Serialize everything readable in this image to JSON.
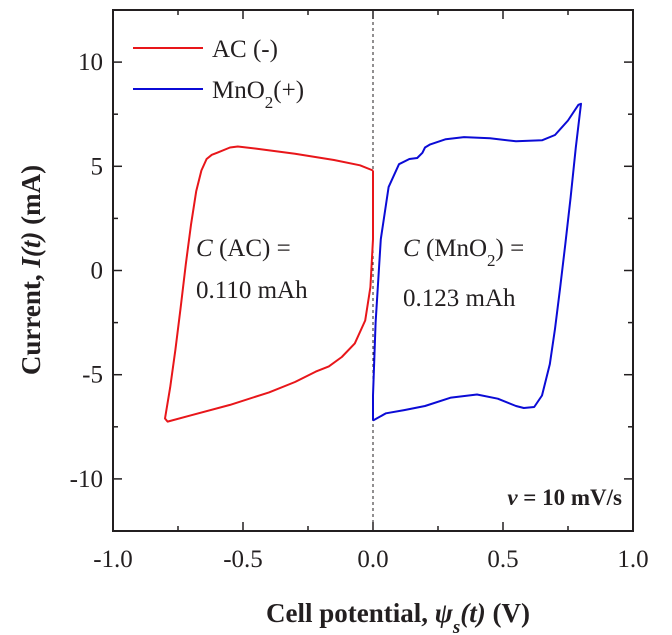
{
  "chart_data": {
    "type": "line",
    "xlabel": "Cell potential, ψs(t) (V)",
    "ylabel": "Current, I(t) (mA)",
    "xlim": [
      -1.0,
      1.0
    ],
    "ylim": [
      -12.5,
      12.5
    ],
    "x_ticks": [
      "-1.0",
      "-0.5",
      "0.0",
      "0.5",
      "1.0"
    ],
    "y_ticks": [
      "10",
      "5",
      "0",
      "-5",
      "-10"
    ],
    "legend_position": "top-left",
    "series": [
      {
        "name": "AC (-)",
        "color": "#e8161a",
        "points": [
          [
            0.0,
            4.8
          ],
          [
            -0.05,
            5.05
          ],
          [
            -0.15,
            5.3
          ],
          [
            -0.3,
            5.6
          ],
          [
            -0.45,
            5.85
          ],
          [
            -0.52,
            5.95
          ],
          [
            -0.55,
            5.9
          ],
          [
            -0.6,
            5.65
          ],
          [
            -0.62,
            5.55
          ],
          [
            -0.64,
            5.35
          ],
          [
            -0.66,
            4.8
          ],
          [
            -0.68,
            3.8
          ],
          [
            -0.7,
            2.2
          ],
          [
            -0.72,
            0.3
          ],
          [
            -0.74,
            -1.8
          ],
          [
            -0.76,
            -3.8
          ],
          [
            -0.78,
            -5.6
          ],
          [
            -0.8,
            -7.1
          ],
          [
            -0.79,
            -7.25
          ],
          [
            -0.7,
            -6.95
          ],
          [
            -0.55,
            -6.45
          ],
          [
            -0.4,
            -5.85
          ],
          [
            -0.3,
            -5.35
          ],
          [
            -0.22,
            -4.85
          ],
          [
            -0.17,
            -4.6
          ],
          [
            -0.12,
            -4.15
          ],
          [
            -0.07,
            -3.5
          ],
          [
            -0.03,
            -2.4
          ],
          [
            -0.01,
            -0.8
          ],
          [
            0.0,
            1.5
          ],
          [
            0.0,
            4.8
          ]
        ]
      },
      {
        "name": "MnO2(+)",
        "color": "#0b0bd6",
        "points": [
          [
            0.0,
            -7.2
          ],
          [
            0.05,
            -6.85
          ],
          [
            0.12,
            -6.7
          ],
          [
            0.2,
            -6.5
          ],
          [
            0.3,
            -6.1
          ],
          [
            0.4,
            -5.95
          ],
          [
            0.48,
            -6.15
          ],
          [
            0.55,
            -6.5
          ],
          [
            0.58,
            -6.6
          ],
          [
            0.62,
            -6.55
          ],
          [
            0.65,
            -6.0
          ],
          [
            0.68,
            -4.5
          ],
          [
            0.7,
            -2.8
          ],
          [
            0.72,
            -0.8
          ],
          [
            0.74,
            1.3
          ],
          [
            0.76,
            3.5
          ],
          [
            0.78,
            5.9
          ],
          [
            0.8,
            8.0
          ],
          [
            0.79,
            7.95
          ],
          [
            0.75,
            7.2
          ],
          [
            0.7,
            6.5
          ],
          [
            0.65,
            6.25
          ],
          [
            0.55,
            6.2
          ],
          [
            0.45,
            6.35
          ],
          [
            0.35,
            6.4
          ],
          [
            0.28,
            6.3
          ],
          [
            0.22,
            6.05
          ],
          [
            0.2,
            5.9
          ],
          [
            0.19,
            5.65
          ],
          [
            0.17,
            5.4
          ],
          [
            0.14,
            5.35
          ],
          [
            0.1,
            5.1
          ],
          [
            0.06,
            4.0
          ],
          [
            0.03,
            1.5
          ],
          [
            0.01,
            -2.5
          ],
          [
            0.0,
            -6.0
          ],
          [
            0.0,
            -7.2
          ]
        ]
      }
    ],
    "annotations": [
      {
        "id": "ac",
        "italic": "C",
        "text": " (AC) =",
        "value": "0.110 mAh"
      },
      {
        "id": "mno2",
        "italic": "C",
        "pre": " (MnO",
        "sub": "2",
        "post": ") =",
        "value": "0.123 mAh"
      }
    ],
    "rate": {
      "symbol": "ν",
      "text": " = 10 mV/s"
    }
  }
}
